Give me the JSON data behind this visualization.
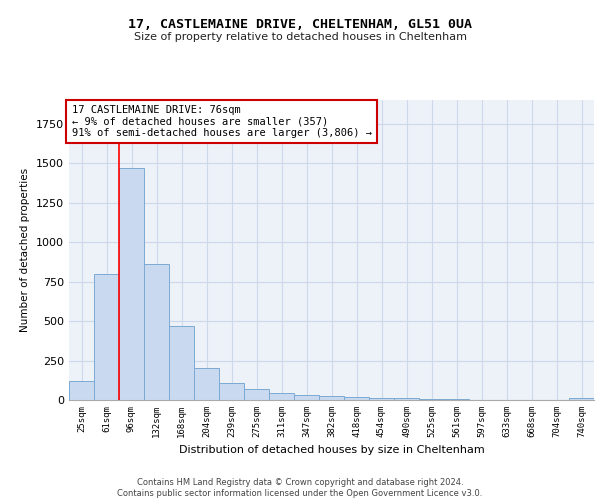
{
  "title1": "17, CASTLEMAINE DRIVE, CHELTENHAM, GL51 0UA",
  "title2": "Size of property relative to detached houses in Cheltenham",
  "xlabel": "Distribution of detached houses by size in Cheltenham",
  "ylabel": "Number of detached properties",
  "categories": [
    "25sqm",
    "61sqm",
    "96sqm",
    "132sqm",
    "168sqm",
    "204sqm",
    "239sqm",
    "275sqm",
    "311sqm",
    "347sqm",
    "382sqm",
    "418sqm",
    "454sqm",
    "490sqm",
    "525sqm",
    "561sqm",
    "597sqm",
    "633sqm",
    "668sqm",
    "704sqm",
    "740sqm"
  ],
  "values": [
    120,
    800,
    1470,
    860,
    470,
    200,
    105,
    70,
    45,
    30,
    25,
    20,
    15,
    10,
    8,
    5,
    3,
    2,
    1,
    1,
    15
  ],
  "bar_color": "#c9daf0",
  "bar_edge_color": "#7baad4",
  "grid_color": "#cdd8eb",
  "bg_color": "#edf1f8",
  "red_line_x": 1.5,
  "annotation_text": "17 CASTLEMAINE DRIVE: 76sqm\n← 9% of detached houses are smaller (357)\n91% of semi-detached houses are larger (3,806) →",
  "annotation_box_color": "#ffffff",
  "annotation_box_edge": "#cc0000",
  "footer": "Contains HM Land Registry data © Crown copyright and database right 2024.\nContains public sector information licensed under the Open Government Licence v3.0.",
  "ylim": [
    0,
    1900
  ],
  "figsize": [
    6.0,
    5.0
  ],
  "dpi": 100
}
